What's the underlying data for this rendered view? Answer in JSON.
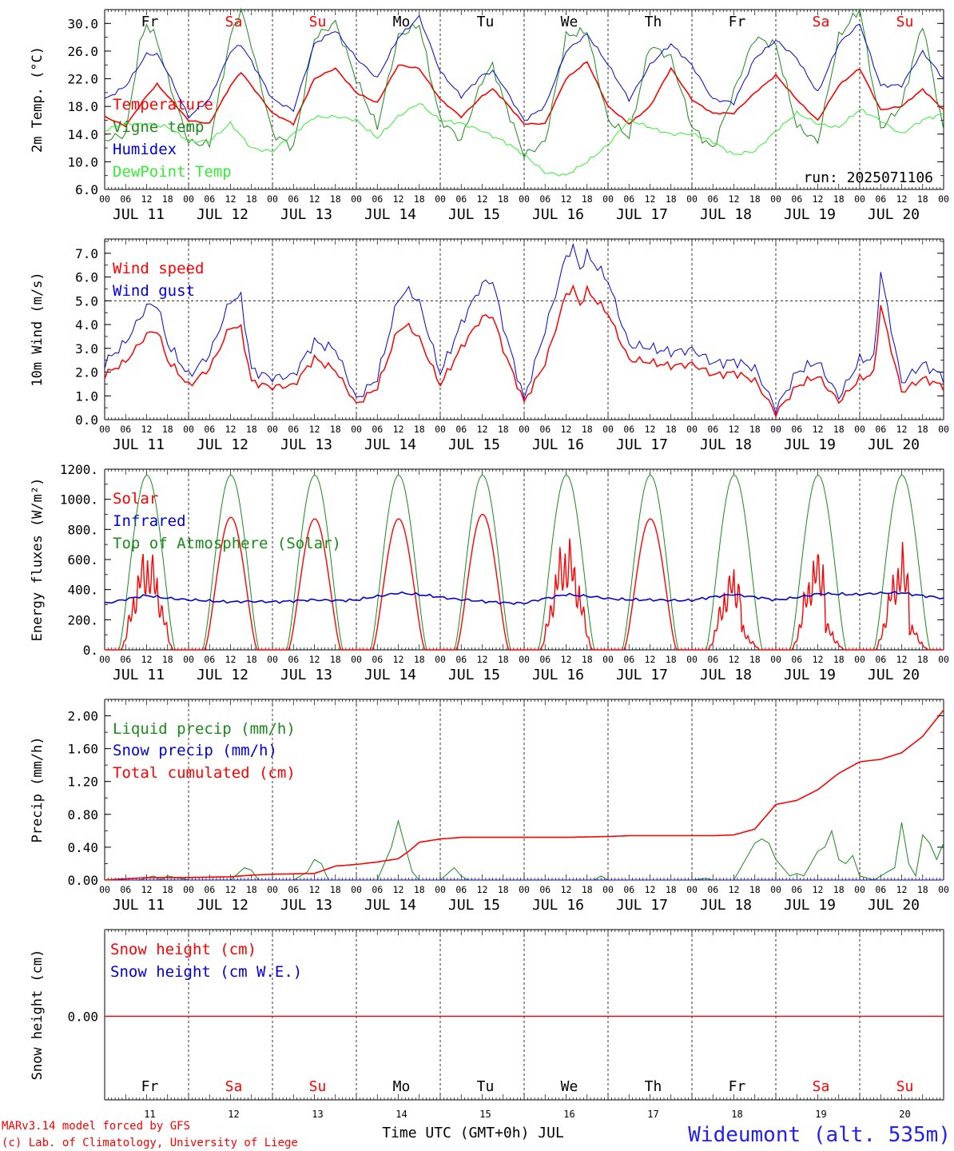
{
  "days": {
    "weekday_labels": [
      "Fr",
      "Sa",
      "Su",
      "Mo",
      "Tu",
      "We",
      "Th",
      "Fr",
      "Sa",
      "Su"
    ],
    "weekday_colors": [
      "#000000",
      "#ff0000",
      "#ff0000",
      "#000000",
      "#000000",
      "#000000",
      "#000000",
      "#000000",
      "#ff0000",
      "#ff0000"
    ],
    "date_labels": [
      "JUL 11",
      "JUL 12",
      "JUL 13",
      "JUL 14",
      "JUL 15",
      "JUL 16",
      "JUL 17",
      "JUL 18",
      "JUL 19",
      "JUL 20"
    ],
    "day_numbers": [
      "11",
      "12",
      "13",
      "14",
      "15",
      "16",
      "17",
      "18",
      "19",
      "20"
    ],
    "hour_labels": [
      "00",
      "06",
      "12",
      "18"
    ],
    "final_hour_label": "00"
  },
  "chart_data": [
    {
      "type": "line",
      "ylabel": "2m Temp. (°C)",
      "ylim": [
        6.0,
        32.0
      ],
      "yticks": [
        "6.0",
        "10.0",
        "14.0",
        "18.0",
        "22.0",
        "26.0",
        "30.0"
      ],
      "ytick_values": [
        6,
        10,
        14,
        18,
        22,
        26,
        30
      ],
      "x_unit": "hours since JUL 11 00 UTC",
      "xlim": [
        0,
        240
      ],
      "annotation": "run: 2025071106",
      "series": [
        {
          "name": "Temperature",
          "color": "#ff0000",
          "x": [
            0,
            6,
            12,
            15,
            18,
            24,
            30,
            36,
            39,
            42,
            48,
            54,
            60,
            66,
            72,
            78,
            84,
            90,
            96,
            102,
            108,
            111,
            114,
            120,
            126,
            132,
            138,
            144,
            150,
            156,
            162,
            168,
            174,
            180,
            186,
            192,
            198,
            204,
            210,
            216,
            222,
            228,
            234,
            240
          ],
          "y": [
            16.5,
            15.2,
            19.5,
            21.2,
            19.5,
            16.0,
            15.5,
            21.0,
            23.0,
            21.0,
            17.0,
            15.5,
            22.0,
            23.5,
            20.0,
            18.5,
            24.0,
            23.5,
            19.0,
            16.5,
            19.5,
            20.5,
            19.0,
            15.5,
            15.5,
            22.0,
            24.5,
            18.0,
            15.5,
            18.0,
            23.5,
            19.0,
            17.0,
            17.0,
            20.0,
            22.5,
            19.0,
            16.0,
            21.0,
            23.5,
            17.5,
            18.0,
            20.5,
            17.5
          ]
        },
        {
          "name": "Vigne temp",
          "color": "#1a8a1a",
          "x": [
            0,
            6,
            10,
            12,
            15,
            18,
            24,
            30,
            36,
            39,
            42,
            48,
            54,
            60,
            66,
            72,
            78,
            84,
            90,
            96,
            102,
            108,
            111,
            114,
            120,
            126,
            132,
            138,
            144,
            150,
            156,
            162,
            168,
            174,
            180,
            186,
            192,
            198,
            204,
            210,
            216,
            222,
            228,
            234,
            240
          ],
          "y": [
            13.0,
            14.0,
            27.0,
            30.0,
            27.5,
            22.0,
            13.0,
            12.5,
            28.0,
            32.0,
            27.0,
            14.0,
            12.0,
            28.0,
            30.0,
            22.0,
            15.0,
            28.0,
            30.0,
            16.0,
            13.0,
            22.0,
            24.0,
            19.0,
            11.0,
            13.0,
            28.0,
            29.0,
            16.0,
            13.5,
            27.0,
            25.0,
            15.0,
            12.0,
            20.0,
            28.0,
            27.0,
            15.0,
            13.0,
            28.0,
            32.0,
            15.0,
            18.0,
            30.0,
            14.5
          ]
        },
        {
          "name": "Humidex",
          "color": "#0000dd",
          "x": [
            0,
            6,
            12,
            15,
            18,
            24,
            30,
            36,
            39,
            42,
            48,
            54,
            60,
            66,
            72,
            78,
            84,
            90,
            96,
            102,
            108,
            111,
            114,
            120,
            126,
            132,
            138,
            144,
            150,
            156,
            162,
            168,
            174,
            180,
            186,
            192,
            198,
            204,
            210,
            216,
            222,
            228,
            234,
            240
          ],
          "y": [
            19.0,
            21.0,
            25.5,
            25.5,
            23.0,
            16.5,
            19.0,
            26.0,
            27.0,
            24.5,
            19.0,
            17.5,
            27.0,
            29.0,
            25.0,
            22.0,
            28.0,
            31.0,
            23.0,
            19.5,
            22.5,
            23.0,
            21.0,
            16.0,
            18.0,
            26.0,
            28.5,
            24.0,
            19.0,
            24.0,
            27.0,
            24.0,
            19.0,
            18.5,
            25.0,
            27.5,
            25.0,
            20.0,
            27.0,
            30.0,
            21.0,
            21.0,
            26.0,
            22.0
          ]
        },
        {
          "name": "DewPoint Temp",
          "color": "#33ee33",
          "x": [
            0,
            6,
            12,
            18,
            24,
            30,
            36,
            42,
            48,
            54,
            60,
            66,
            72,
            78,
            84,
            90,
            96,
            102,
            108,
            114,
            120,
            126,
            132,
            138,
            144,
            150,
            156,
            162,
            168,
            174,
            180,
            186,
            192,
            198,
            204,
            210,
            216,
            222,
            228,
            234,
            240
          ],
          "y": [
            14.5,
            15.5,
            15.5,
            15.0,
            13.0,
            13.0,
            15.5,
            12.0,
            11.5,
            14.0,
            16.5,
            16.5,
            16.0,
            13.5,
            16.5,
            18.5,
            16.0,
            15.5,
            14.5,
            13.0,
            11.0,
            8.5,
            8.0,
            10.0,
            12.5,
            16.0,
            15.0,
            14.0,
            14.0,
            13.0,
            11.0,
            11.5,
            14.5,
            17.0,
            15.5,
            15.0,
            17.5,
            16.0,
            14.0,
            16.0,
            17.0
          ]
        }
      ]
    },
    {
      "type": "line",
      "ylabel": "10m Wind (m/s)",
      "ylim": [
        0.0,
        7.6
      ],
      "yticks": [
        "0.0",
        "1.0",
        "2.0",
        "3.0",
        "4.0",
        "5.0",
        "6.0",
        "7.0"
      ],
      "ytick_values": [
        0,
        1,
        2,
        3,
        4,
        5,
        6,
        7
      ],
      "reference_line": 5.0,
      "xlim": [
        0,
        240
      ],
      "series": [
        {
          "name": "Wind speed",
          "color": "#ff0000",
          "x": [
            0,
            6,
            12,
            15,
            18,
            24,
            30,
            36,
            39,
            42,
            48,
            54,
            60,
            66,
            72,
            78,
            84,
            87,
            90,
            96,
            102,
            108,
            111,
            114,
            120,
            126,
            132,
            134,
            136,
            138,
            144,
            150,
            156,
            162,
            168,
            174,
            180,
            186,
            192,
            198,
            204,
            210,
            216,
            220,
            222,
            228,
            234,
            240
          ],
          "y": [
            1.9,
            2.4,
            3.6,
            3.8,
            2.5,
            1.4,
            2.2,
            3.9,
            3.8,
            1.6,
            1.4,
            1.4,
            2.6,
            2.1,
            0.6,
            1.4,
            3.8,
            3.9,
            3.4,
            1.5,
            3.0,
            4.3,
            4.4,
            3.0,
            0.7,
            2.4,
            5.3,
            5.5,
            4.8,
            5.4,
            4.5,
            2.5,
            2.4,
            2.3,
            2.3,
            1.9,
            2.0,
            1.6,
            0.3,
            1.4,
            1.8,
            0.8,
            1.7,
            1.9,
            4.8,
            1.2,
            1.7,
            1.4
          ]
        },
        {
          "name": "Wind gust",
          "color": "#0000dd",
          "x": [
            0,
            6,
            12,
            15,
            18,
            24,
            30,
            36,
            39,
            42,
            48,
            54,
            60,
            66,
            72,
            78,
            84,
            87,
            90,
            96,
            102,
            108,
            111,
            114,
            120,
            126,
            132,
            134,
            136,
            138,
            144,
            150,
            156,
            162,
            168,
            174,
            180,
            186,
            192,
            198,
            204,
            210,
            216,
            220,
            222,
            228,
            234,
            240
          ],
          "y": [
            2.4,
            3.2,
            4.8,
            4.9,
            3.2,
            1.8,
            2.8,
            5.0,
            5.1,
            2.1,
            1.8,
            1.8,
            3.3,
            3.0,
            0.8,
            1.8,
            5.1,
            5.4,
            4.9,
            2.0,
            4.0,
            5.7,
            5.9,
            4.0,
            0.8,
            3.8,
            6.9,
            7.2,
            6.3,
            6.9,
            5.9,
            3.1,
            3.0,
            2.9,
            2.9,
            2.4,
            2.5,
            2.1,
            0.5,
            2.0,
            2.4,
            1.0,
            2.5,
            2.5,
            6.2,
            1.6,
            2.3,
            1.8
          ]
        }
      ]
    },
    {
      "type": "line",
      "ylabel": "Energy fluxes (W/m²)",
      "ylim": [
        0,
        1200
      ],
      "yticks": [
        "0.",
        "200.",
        "400.",
        "600.",
        "800.",
        "1000.",
        "1200."
      ],
      "ytick_values": [
        0,
        200,
        400,
        600,
        800,
        1000,
        1200
      ],
      "xlim": [
        0,
        240
      ],
      "series": [
        {
          "name": "Solar",
          "color": "#ff0000",
          "daily_peaks": [
            780,
            880,
            870,
            870,
            900,
            860,
            870,
            630,
            760,
            750
          ]
        },
        {
          "name": "Infrared",
          "color": "#0000dd",
          "x": [
            0,
            12,
            24,
            36,
            48,
            60,
            72,
            84,
            96,
            108,
            120,
            132,
            144,
            156,
            168,
            180,
            192,
            204,
            216,
            228,
            240
          ],
          "y": [
            310,
            360,
            330,
            320,
            320,
            330,
            330,
            380,
            350,
            320,
            310,
            370,
            340,
            330,
            330,
            370,
            330,
            370,
            370,
            380,
            340
          ]
        },
        {
          "name": "Top of Atmosphere (Solar)",
          "color": "#1a8a1a",
          "daily_peak": 1160
        }
      ]
    },
    {
      "type": "line",
      "ylabel": "Precip (mm/h)",
      "ylim": [
        0.0,
        2.2
      ],
      "yticks": [
        "0.00",
        "0.40",
        "0.80",
        "1.20",
        "1.60",
        "2.00"
      ],
      "ytick_values": [
        0,
        0.4,
        0.8,
        1.2,
        1.6,
        2.0
      ],
      "xlim": [
        0,
        240
      ],
      "series": [
        {
          "name": "Liquid precip (mm/h)",
          "color": "#1a8a1a",
          "x": [
            0,
            10,
            14,
            16,
            18,
            24,
            36,
            40,
            42,
            44,
            48,
            54,
            58,
            60,
            62,
            64,
            70,
            78,
            82,
            84,
            86,
            88,
            90,
            96,
            100,
            102,
            104,
            140,
            142,
            144,
            168,
            172,
            174,
            180,
            182,
            186,
            188,
            190,
            192,
            196,
            198,
            200,
            204,
            206,
            208,
            210,
            212,
            214,
            216,
            220,
            224,
            226,
            228,
            230,
            232,
            234,
            236,
            238,
            240
          ],
          "y": [
            0,
            0,
            0.05,
            0,
            0.05,
            0,
            0,
            0.15,
            0.12,
            0,
            0,
            0,
            0.1,
            0.25,
            0.2,
            0,
            0,
            0,
            0.4,
            0.72,
            0.4,
            0.1,
            0,
            0,
            0.15,
            0.05,
            0,
            0,
            0.05,
            0,
            0,
            0.02,
            0,
            0,
            0.15,
            0.45,
            0.5,
            0.45,
            0.25,
            0.05,
            0.08,
            0.05,
            0.35,
            0.4,
            0.6,
            0.25,
            0.2,
            0.3,
            0.05,
            0,
            0.1,
            0.15,
            0.7,
            0.2,
            0.05,
            0.55,
            0.45,
            0.25,
            0.45
          ]
        },
        {
          "name": "Snow precip (mm/h)",
          "color": "#0000dd",
          "x": [
            0,
            240
          ],
          "y": [
            0,
            0
          ]
        },
        {
          "name": "Total cumulated (cm)",
          "color": "#ff0000",
          "x": [
            0,
            12,
            18,
            24,
            36,
            42,
            48,
            60,
            66,
            72,
            78,
            84,
            87,
            90,
            96,
            102,
            108,
            120,
            132,
            144,
            150,
            156,
            168,
            174,
            180,
            186,
            192,
            198,
            204,
            210,
            216,
            222,
            228,
            234,
            240
          ],
          "y": [
            0,
            0.03,
            0.03,
            0.03,
            0.04,
            0.06,
            0.07,
            0.08,
            0.17,
            0.19,
            0.22,
            0.26,
            0.35,
            0.46,
            0.5,
            0.52,
            0.52,
            0.52,
            0.52,
            0.53,
            0.54,
            0.54,
            0.54,
            0.54,
            0.55,
            0.62,
            0.92,
            0.97,
            1.1,
            1.3,
            1.44,
            1.47,
            1.55,
            1.75,
            2.07
          ]
        }
      ]
    },
    {
      "type": "line",
      "ylabel": "Snow height (cm)",
      "yticks": [
        "0.00"
      ],
      "ytick_values": [
        0
      ],
      "xlim": [
        0,
        240
      ],
      "series": [
        {
          "name": "Snow height (cm)",
          "color": "#ff0000",
          "x": [
            0,
            240
          ],
          "y": [
            0,
            0
          ]
        },
        {
          "name": "Snow height (cm W.E.)",
          "color": "#0000dd",
          "x": [
            0,
            240
          ],
          "y": [
            0,
            0
          ]
        }
      ]
    }
  ],
  "footer": {
    "model_line": "MARv3.14 model forced by GFS",
    "copyright_line": "(c) Lab. of Climatology, University of Liege",
    "xlabel": "Time UTC (GMT+0h) JUL",
    "station": "Wideumont (alt. 535m)"
  }
}
